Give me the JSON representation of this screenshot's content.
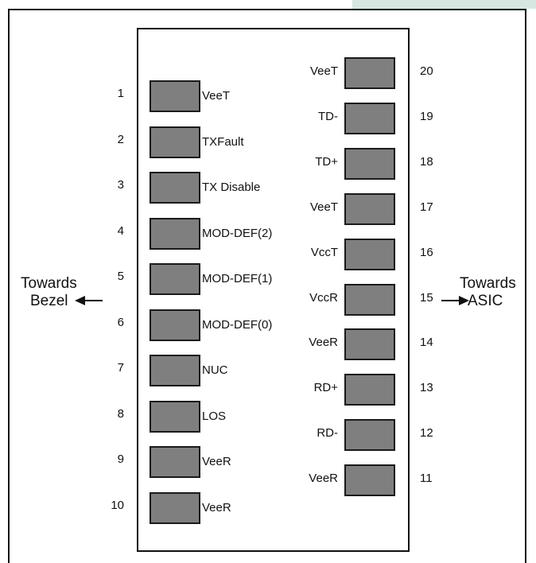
{
  "left_pins": [
    {
      "num": "1",
      "signal": "VeeT"
    },
    {
      "num": "2",
      "signal": "TXFault"
    },
    {
      "num": "3",
      "signal": "TX Disable"
    },
    {
      "num": "4",
      "signal": "MOD-DEF(2)"
    },
    {
      "num": "5",
      "signal": "MOD-DEF(1)"
    },
    {
      "num": "6",
      "signal": "MOD-DEF(0)"
    },
    {
      "num": "7",
      "signal": "NUC"
    },
    {
      "num": "8",
      "signal": "LOS"
    },
    {
      "num": "9",
      "signal": "VeeR"
    },
    {
      "num": "10",
      "signal": "VeeR"
    }
  ],
  "right_pins": [
    {
      "num": "20",
      "signal": "VeeT"
    },
    {
      "num": "19",
      "signal": "TD-"
    },
    {
      "num": "18",
      "signal": "TD+"
    },
    {
      "num": "17",
      "signal": "VeeT"
    },
    {
      "num": "16",
      "signal": "VccT"
    },
    {
      "num": "15",
      "signal": "VccR"
    },
    {
      "num": "14",
      "signal": "VeeR"
    },
    {
      "num": "13",
      "signal": "RD+"
    },
    {
      "num": "12",
      "signal": "RD-"
    },
    {
      "num": "11",
      "signal": "VeeR"
    }
  ],
  "left_direction": {
    "line1": "Towards",
    "line2": "Bezel"
  },
  "right_direction": {
    "line1": "Towards",
    "line2": "ASIC"
  },
  "colors": {
    "pad_fill": "#7f7f7f",
    "accent": "#d7e6e1"
  }
}
